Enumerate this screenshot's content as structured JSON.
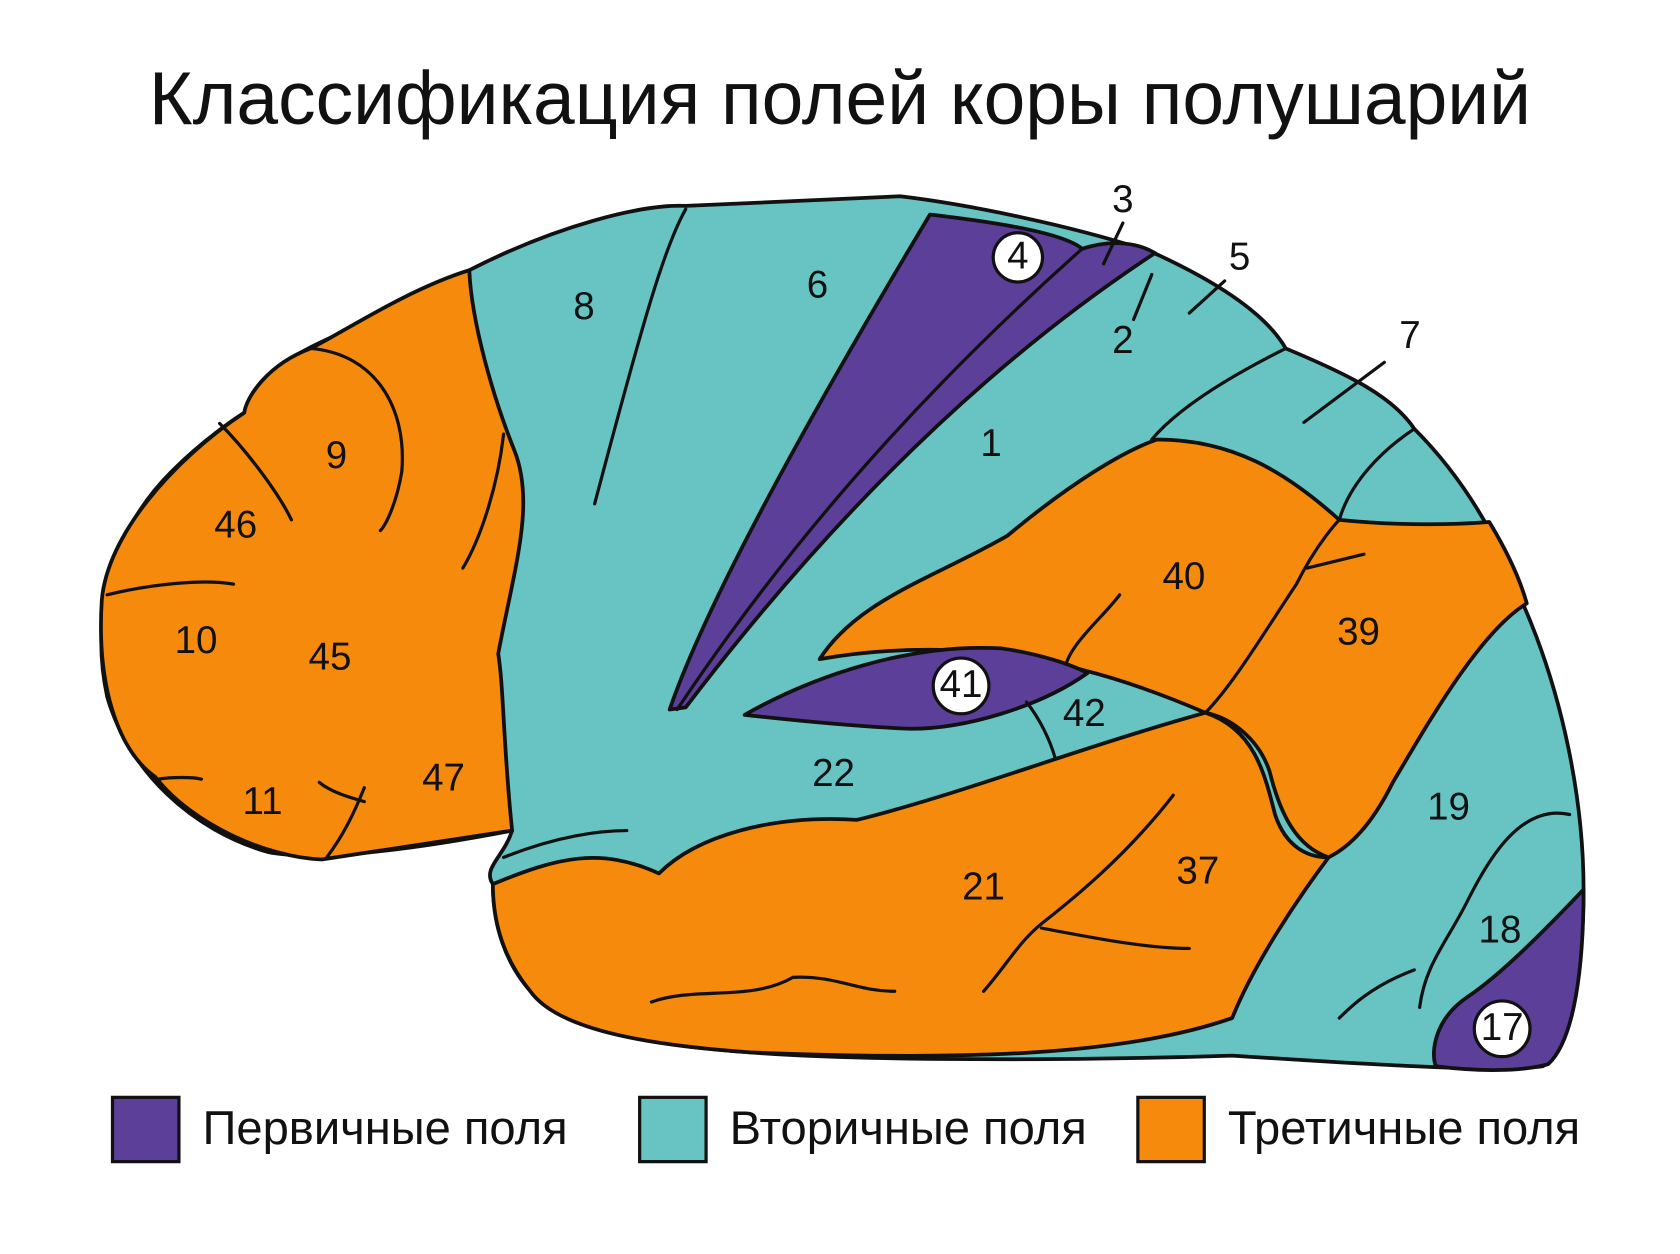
{
  "title": "Классификация полей коры полушарий",
  "fields": [
    {
      "label": "8"
    },
    {
      "label": "6"
    },
    {
      "label": "4"
    },
    {
      "label": "3"
    },
    {
      "label": "5"
    },
    {
      "label": "2"
    },
    {
      "label": "1"
    },
    {
      "label": "7"
    },
    {
      "label": "9"
    },
    {
      "label": "46"
    },
    {
      "label": "10"
    },
    {
      "label": "45"
    },
    {
      "label": "11"
    },
    {
      "label": "47"
    },
    {
      "label": "40"
    },
    {
      "label": "39"
    },
    {
      "label": "41"
    },
    {
      "label": "42"
    },
    {
      "label": "22"
    },
    {
      "label": "21"
    },
    {
      "label": "37"
    },
    {
      "label": "19"
    },
    {
      "label": "18"
    },
    {
      "label": "17"
    }
  ],
  "legend": [
    {
      "label": "Первичные поля",
      "color": "#5b3f99"
    },
    {
      "label": "Вторичные поля",
      "color": "#67c4c2"
    },
    {
      "label": "Третичные поля",
      "color": "#f68a0c"
    }
  ]
}
